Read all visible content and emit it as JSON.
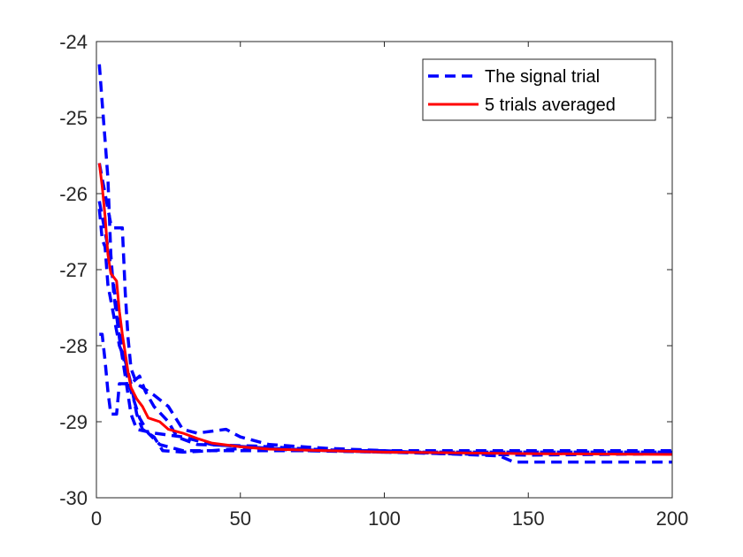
{
  "chart_data": {
    "type": "line",
    "title": "",
    "xlabel": "",
    "ylabel": "",
    "xlim": [
      0,
      200
    ],
    "ylim": [
      -30,
      -24
    ],
    "xticks": [
      "0",
      "50",
      "100",
      "150",
      "200"
    ],
    "yticks": [
      "-24",
      "-25",
      "-26",
      "-27",
      "-28",
      "-29",
      "-30"
    ],
    "grid": false,
    "legend_placement": "top-right",
    "legend": [
      {
        "label": "The signal trial",
        "color": "#0000ff",
        "style": "dashed"
      },
      {
        "label": "5 trials averaged",
        "color": "#ff0000",
        "style": "solid"
      }
    ],
    "series": [
      {
        "legend": "The signal trial",
        "color": "#0000ff",
        "style": "dashed",
        "points": [
          [
            1,
            -24.3
          ],
          [
            2,
            -24.8
          ],
          [
            3,
            -25.3
          ],
          [
            4,
            -25.8
          ],
          [
            5,
            -26.8
          ],
          [
            6,
            -27.3
          ],
          [
            8,
            -27.9
          ],
          [
            10,
            -28.4
          ],
          [
            12,
            -28.9
          ],
          [
            14,
            -29.1
          ],
          [
            20,
            -29.15
          ],
          [
            30,
            -29.2
          ],
          [
            40,
            -29.3
          ],
          [
            60,
            -29.35
          ],
          [
            80,
            -29.38
          ],
          [
            100,
            -29.4
          ],
          [
            200,
            -29.4
          ]
        ]
      },
      {
        "legend": "The signal trial",
        "color": "#0000ff",
        "style": "dashed",
        "points": [
          [
            1,
            -26.1
          ],
          [
            2,
            -26.3
          ],
          [
            4,
            -26.7
          ],
          [
            6,
            -27.2
          ],
          [
            8,
            -27.8
          ],
          [
            10,
            -28.3
          ],
          [
            12,
            -28.6
          ],
          [
            15,
            -28.95
          ],
          [
            18,
            -29.15
          ],
          [
            22,
            -29.3
          ],
          [
            30,
            -29.38
          ],
          [
            50,
            -29.38
          ],
          [
            100,
            -29.38
          ],
          [
            150,
            -29.38
          ],
          [
            200,
            -29.38
          ]
        ]
      },
      {
        "legend": "The signal trial",
        "color": "#0000ff",
        "style": "dashed",
        "points": [
          [
            1,
            -25.6
          ],
          [
            2,
            -25.8
          ],
          [
            3,
            -26.0
          ],
          [
            4,
            -26.2
          ],
          [
            5,
            -26.4
          ],
          [
            6,
            -26.45
          ],
          [
            9,
            -26.45
          ],
          [
            10,
            -27.3
          ],
          [
            11,
            -27.9
          ],
          [
            12,
            -28.3
          ],
          [
            14,
            -28.5
          ],
          [
            20,
            -28.65
          ],
          [
            25,
            -28.8
          ],
          [
            30,
            -29.1
          ],
          [
            35,
            -29.15
          ],
          [
            45,
            -29.1
          ],
          [
            50,
            -29.2
          ],
          [
            60,
            -29.3
          ],
          [
            80,
            -29.35
          ],
          [
            100,
            -29.38
          ],
          [
            120,
            -29.42
          ],
          [
            140,
            -29.45
          ],
          [
            145,
            -29.53
          ],
          [
            200,
            -29.53
          ]
        ]
      },
      {
        "legend": "The signal trial",
        "color": "#0000ff",
        "style": "dashed",
        "points": [
          [
            1,
            -27.85
          ],
          [
            2,
            -27.85
          ],
          [
            3,
            -28.2
          ],
          [
            4,
            -28.6
          ],
          [
            5,
            -28.9
          ],
          [
            7,
            -28.9
          ],
          [
            8,
            -28.5
          ],
          [
            12,
            -28.5
          ],
          [
            15,
            -28.4
          ],
          [
            17,
            -28.6
          ],
          [
            20,
            -28.8
          ],
          [
            25,
            -29.0
          ],
          [
            28,
            -29.2
          ],
          [
            35,
            -29.3
          ],
          [
            55,
            -29.32
          ],
          [
            75,
            -29.36
          ],
          [
            100,
            -29.4
          ],
          [
            120,
            -29.42
          ],
          [
            150,
            -29.44
          ],
          [
            200,
            -29.42
          ]
        ]
      },
      {
        "legend": "The signal trial",
        "color": "#0000ff",
        "style": "dashed",
        "points": [
          [
            1,
            -26.2
          ],
          [
            2,
            -26.6
          ],
          [
            3,
            -26.7
          ],
          [
            4,
            -27.2
          ],
          [
            6,
            -27.6
          ],
          [
            8,
            -28.0
          ],
          [
            10,
            -28.2
          ],
          [
            12,
            -28.5
          ],
          [
            14,
            -28.9
          ],
          [
            16,
            -29.1
          ],
          [
            20,
            -29.2
          ],
          [
            23,
            -29.38
          ],
          [
            30,
            -29.4
          ],
          [
            40,
            -29.38
          ],
          [
            55,
            -29.34
          ],
          [
            70,
            -29.38
          ],
          [
            100,
            -29.4
          ],
          [
            200,
            -29.4
          ]
        ]
      },
      {
        "legend": "5 trials averaged",
        "color": "#ff0000",
        "style": "solid",
        "points": [
          [
            1,
            -25.6
          ],
          [
            2,
            -25.9
          ],
          [
            3,
            -26.3
          ],
          [
            4,
            -26.8
          ],
          [
            5,
            -27.05
          ],
          [
            7,
            -27.15
          ],
          [
            8,
            -27.55
          ],
          [
            9,
            -27.85
          ],
          [
            10,
            -28.1
          ],
          [
            11,
            -28.35
          ],
          [
            12,
            -28.55
          ],
          [
            14,
            -28.7
          ],
          [
            16,
            -28.8
          ],
          [
            18,
            -28.95
          ],
          [
            22,
            -29.0
          ],
          [
            25,
            -29.1
          ],
          [
            30,
            -29.15
          ],
          [
            35,
            -29.22
          ],
          [
            40,
            -29.28
          ],
          [
            50,
            -29.33
          ],
          [
            60,
            -29.36
          ],
          [
            80,
            -29.38
          ],
          [
            100,
            -29.4
          ],
          [
            150,
            -29.42
          ],
          [
            200,
            -29.43
          ]
        ]
      }
    ]
  }
}
